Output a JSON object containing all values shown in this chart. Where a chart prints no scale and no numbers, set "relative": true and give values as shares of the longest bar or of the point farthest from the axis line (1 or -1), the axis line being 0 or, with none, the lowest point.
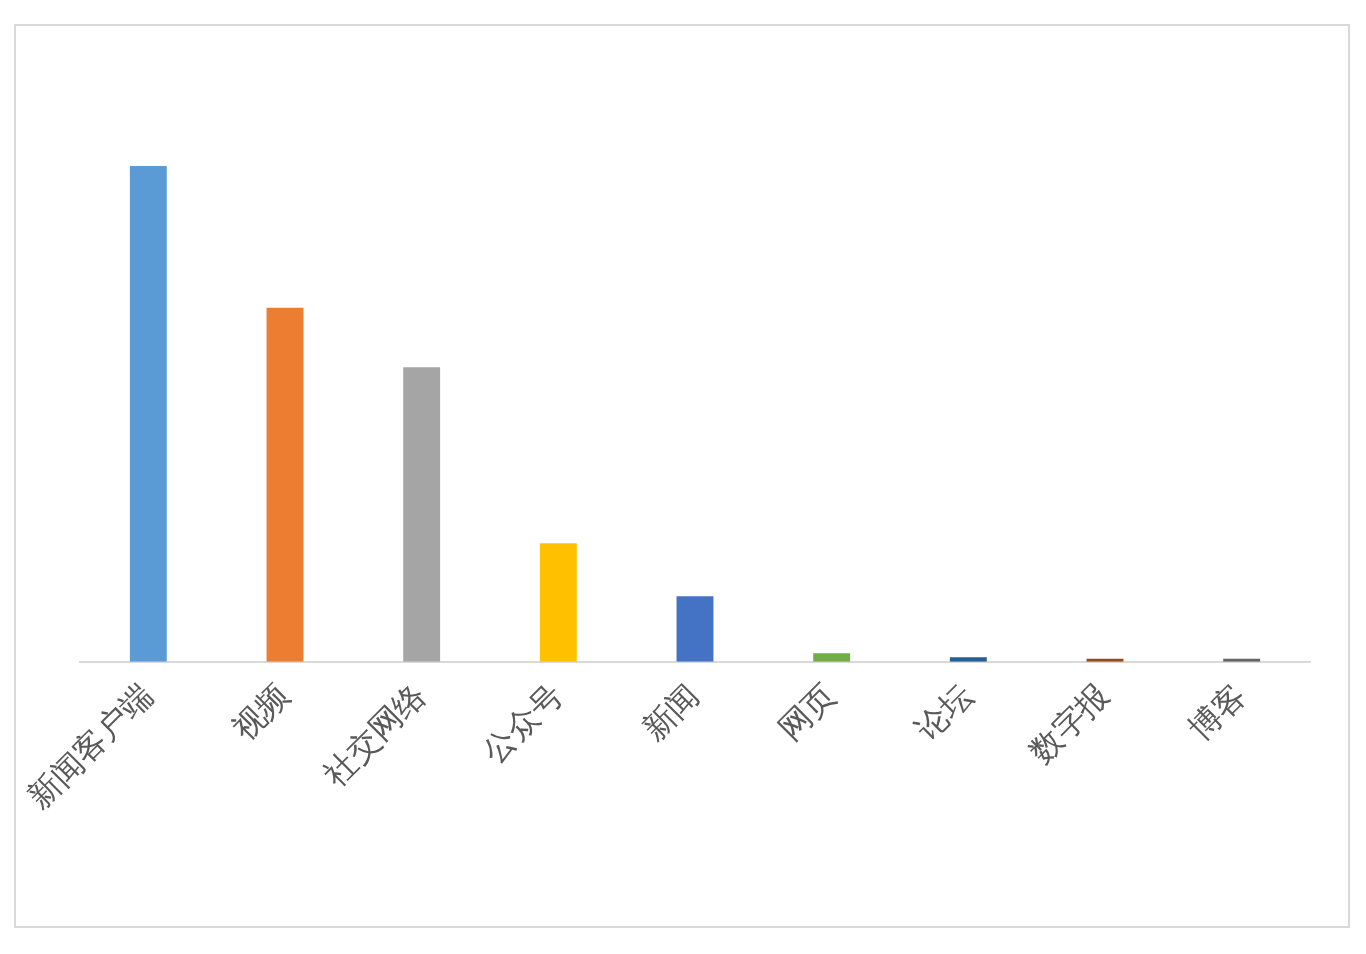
{
  "chart_data": {
    "type": "bar",
    "relative": true,
    "categories": [
      "新闻客户端",
      "视频",
      "社交网络",
      "公众号",
      "新闻",
      "网页",
      "论坛",
      "数字报",
      "博客"
    ],
    "values": [
      1,
      0.714,
      0.594,
      0.239,
      0.132,
      0.017,
      0.009,
      0.006,
      0.006
    ],
    "colors": [
      "#5b9bd5",
      "#ed7d31",
      "#a5a5a5",
      "#ffc000",
      "#4472c4",
      "#70ad47",
      "#255e91",
      "#9e480e",
      "#636363"
    ],
    "grid": false,
    "legend": false
  }
}
